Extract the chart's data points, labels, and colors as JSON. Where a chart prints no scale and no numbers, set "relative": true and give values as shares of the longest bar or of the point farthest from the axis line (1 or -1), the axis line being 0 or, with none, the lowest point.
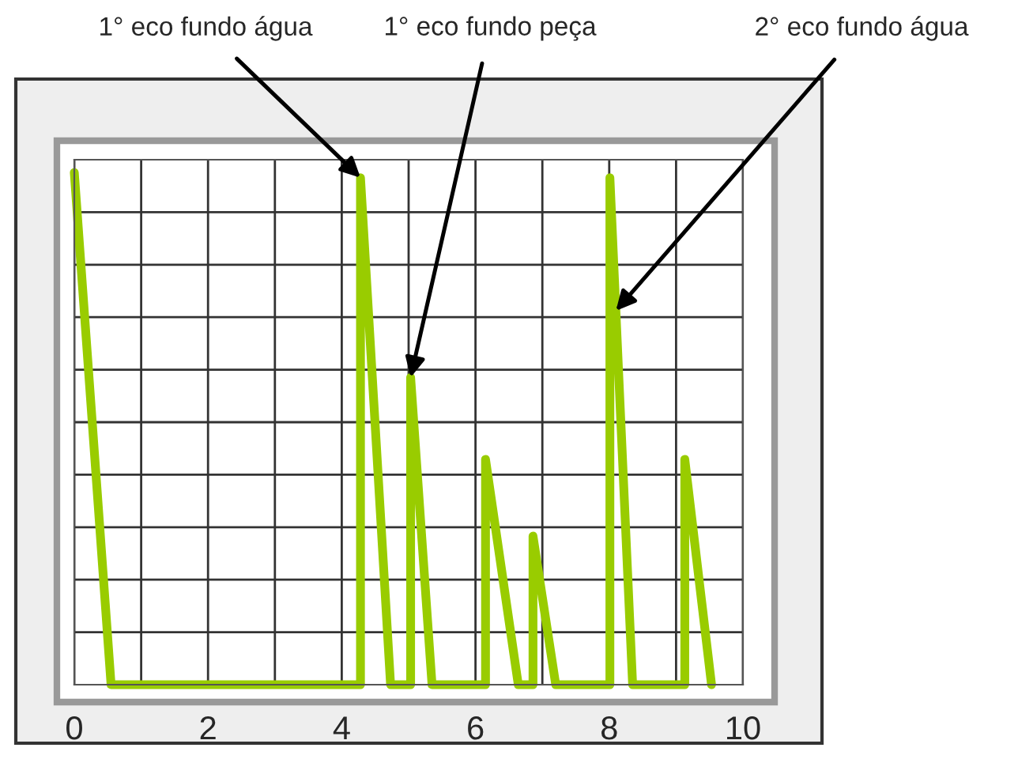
{
  "chart_data": {
    "type": "line",
    "relative": true,
    "x": [
      0,
      0.55,
      4.28,
      4.28,
      4.73,
      5.03,
      5.03,
      5.35,
      6.15,
      6.15,
      6.64,
      6.86,
      6.86,
      7.2,
      8.01,
      8.01,
      8.35,
      9.13,
      9.13,
      9.53
    ],
    "series": [
      {
        "color": "#99cc00",
        "values": [
          1,
          0,
          0,
          0.99,
          0,
          0,
          0.6,
          0,
          0,
          0.44,
          0,
          0,
          0.29,
          0,
          0,
          0.99,
          0,
          0,
          0.44,
          0
        ]
      }
    ],
    "xlim": [
      0,
      10
    ],
    "xticks": [
      0,
      {
        "value": 1,
        "label": null
      },
      2,
      {
        "value": 3,
        "label": null
      },
      4,
      {
        "value": 5,
        "label": null
      },
      6,
      {
        "value": 7,
        "label": null
      },
      8,
      {
        "value": 9,
        "label": null
      },
      10
    ],
    "grid": true,
    "marker": "none",
    "line_style": "solid",
    "legend": false,
    "annotations": [
      {
        "text": "1° eco fundo água",
        "x": 4.28,
        "y": 0.99
      },
      {
        "text": "1° eco fundo peça",
        "x": 5.03,
        "y": 0.6
      },
      {
        "text": "2° eco fundo água",
        "x": 8.1,
        "y": 0.73
      }
    ]
  }
}
